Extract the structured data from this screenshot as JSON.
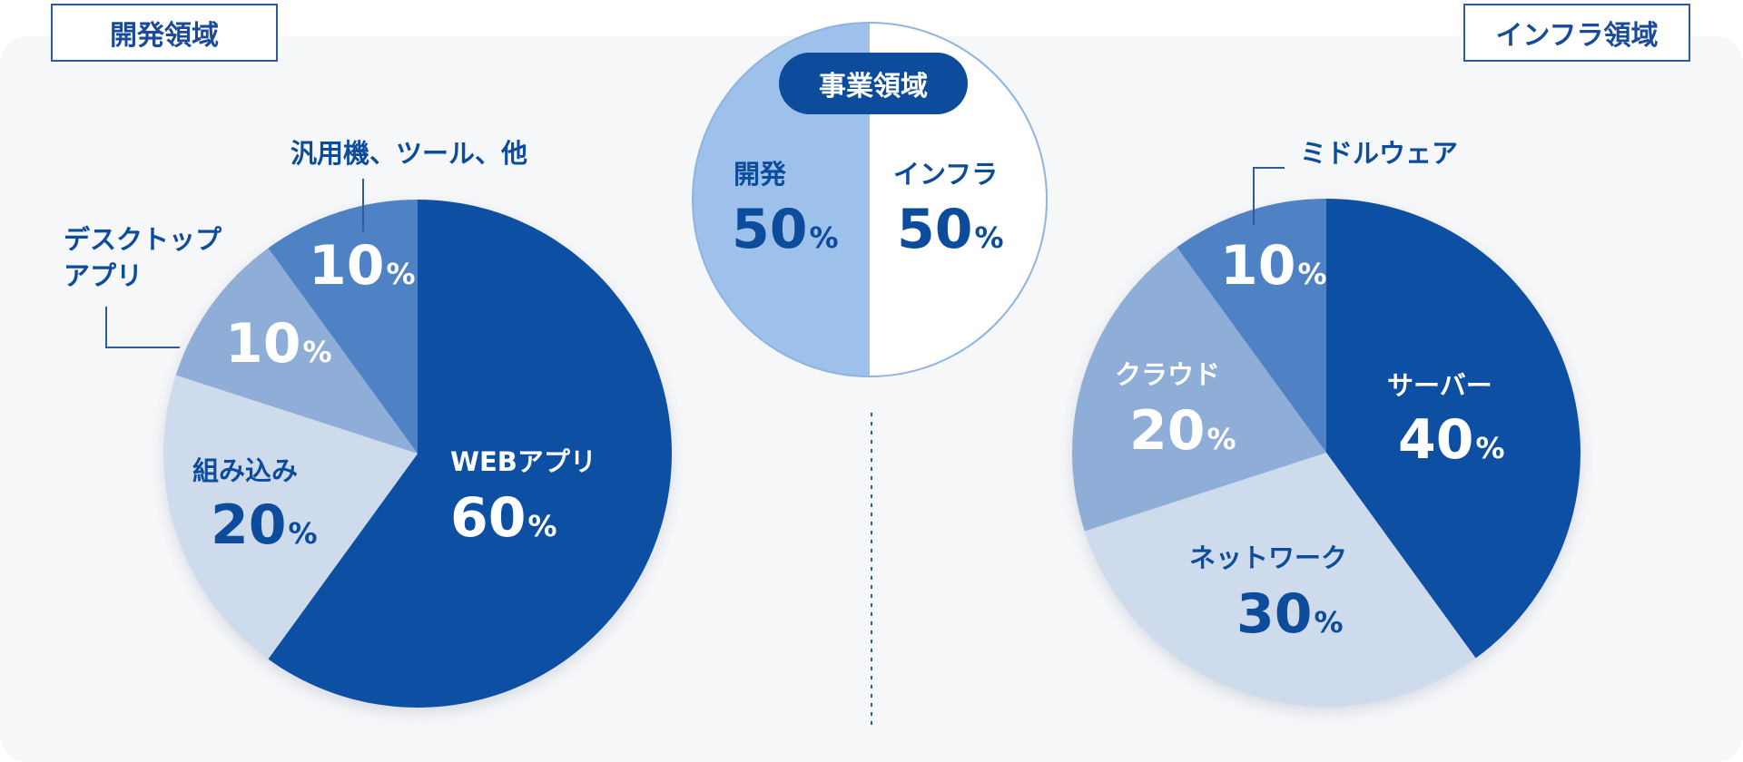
{
  "tags": {
    "dev_area": "開発領域",
    "infra_area": "インフラ領域",
    "business_area": "事業領域"
  },
  "chart_data": [
    {
      "type": "pie",
      "title": "開発領域",
      "slices": [
        {
          "label": "WEBアプリ",
          "value": 60,
          "color": "#0a4fa3"
        },
        {
          "label": "組み込み",
          "value": 20,
          "color": "#cddbed"
        },
        {
          "label": "デスクトップアプリ",
          "value": 10,
          "color": "#8eadd7"
        },
        {
          "label": "汎用機、ツール、他",
          "value": 10,
          "color": "#5082c4"
        }
      ]
    },
    {
      "type": "pie",
      "title": "事業領域",
      "slices": [
        {
          "label": "開発",
          "value": 50,
          "color": "#ffffff"
        },
        {
          "label": "インフラ",
          "value": 50,
          "color": "#9dc1ea"
        }
      ]
    },
    {
      "type": "pie",
      "title": "インフラ領域",
      "slices": [
        {
          "label": "サーバー",
          "value": 40,
          "color": "#0a4fa3"
        },
        {
          "label": "ネットワーク",
          "value": 30,
          "color": "#cddbed"
        },
        {
          "label": "クラウド",
          "value": 20,
          "color": "#8eadd7"
        },
        {
          "label": "ミドルウェア",
          "value": 10,
          "color": "#5082c4"
        }
      ]
    }
  ],
  "labels": {
    "web": "WEBアプリ",
    "embedded": "組み込み",
    "desktop_line1": "デスクトップ",
    "desktop_line2": "アプリ",
    "mainframe": "汎用機、ツール、他",
    "dev": "開発",
    "infra": "インフラ",
    "server": "サーバー",
    "network": "ネットワーク",
    "cloud": "クラウド",
    "middleware": "ミドルウェア"
  },
  "pct": {
    "web": "60",
    "embedded": "20",
    "desktop": "10",
    "mainframe": "10",
    "dev": "50",
    "infra": "50",
    "server": "40",
    "network": "30",
    "cloud": "20",
    "middleware": "10",
    "unit": "%"
  }
}
